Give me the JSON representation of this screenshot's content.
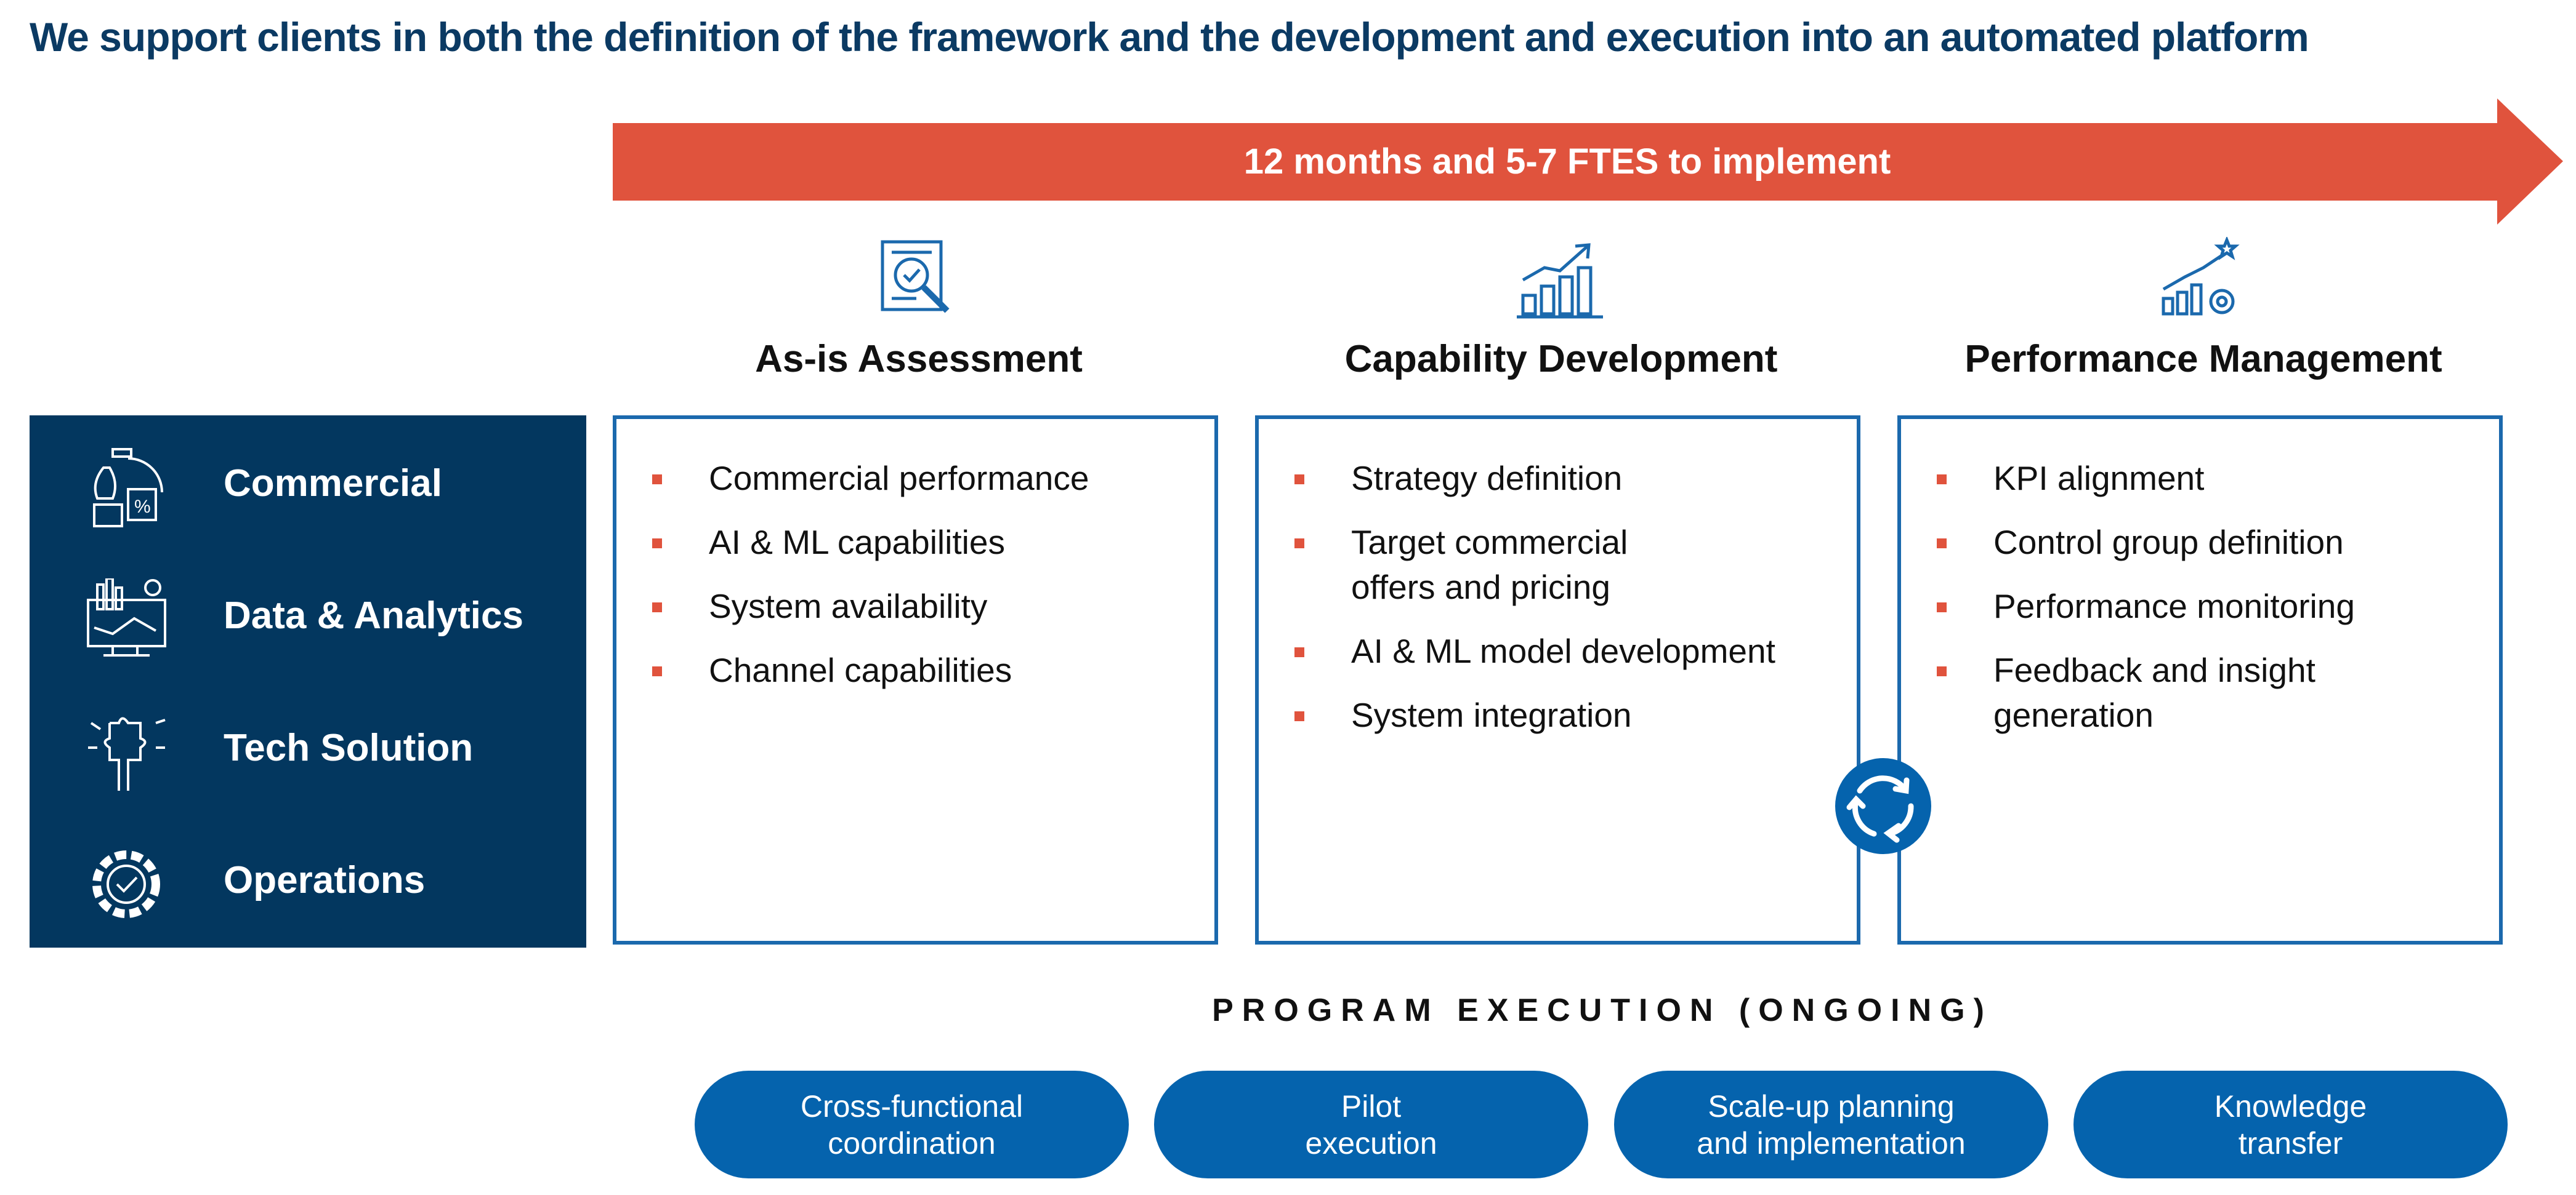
{
  "title": "We support clients in both the definition of the framework and the development and execution into an automated platform",
  "timeline": {
    "label": "12 months and 5-7 FTES to implement",
    "color": "#e0533d"
  },
  "categories": [
    {
      "label": "Commercial",
      "icon": "money-bag-percent-icon"
    },
    {
      "label": "Data & Analytics",
      "icon": "monitor-chart-icon"
    },
    {
      "label": "Tech Solution",
      "icon": "puzzle-hand-icon"
    },
    {
      "label": "Operations",
      "icon": "gear-check-icon"
    }
  ],
  "phases": [
    {
      "title": "As-is Assessment",
      "icon": "document-magnifier-icon",
      "items": [
        "Commercial performance",
        "AI & ML capabilities",
        "System availability",
        "Channel capabilities"
      ]
    },
    {
      "title": "Capability Development",
      "icon": "bar-chart-growth-icon",
      "items": [
        "Strategy definition",
        "Target commercial offers and pricing",
        "AI & ML model development",
        "System integration"
      ]
    },
    {
      "title": "Performance Management",
      "icon": "chart-gear-star-icon",
      "items": [
        "KPI alignment",
        "Control group definition",
        "Performance monitoring",
        "Feedback and insight generation"
      ]
    }
  ],
  "program": {
    "title": "PROGRAM EXECUTION (ONGOING)",
    "items": [
      {
        "line1": "Cross-functional",
        "line2": "coordination"
      },
      {
        "line1": "Pilot",
        "line2": "execution"
      },
      {
        "line1": "Scale-up planning",
        "line2": "and implementation"
      },
      {
        "line1": "Knowledge",
        "line2": "transfer"
      }
    ]
  },
  "colors": {
    "navy": "#03375f",
    "blue": "#1b69ad",
    "pill": "#0563ad",
    "accent": "#e0533d"
  }
}
